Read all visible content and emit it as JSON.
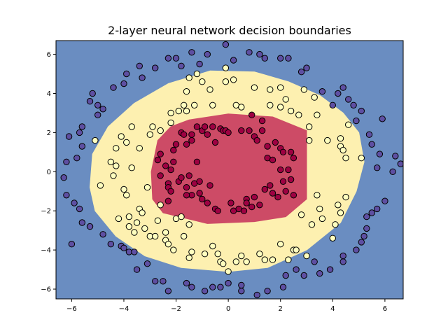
{
  "chart_data": {
    "type": "scatter",
    "title": "2-layer neural network decision boundaries",
    "xlabel": "",
    "ylabel": "",
    "xlim": [
      -6.6,
      6.7
    ],
    "ylim": [
      -6.5,
      6.7
    ],
    "xticks": [
      -6,
      -4,
      -2,
      0,
      2,
      4,
      6
    ],
    "yticks": [
      -6,
      -4,
      -2,
      0,
      2,
      4,
      6
    ],
    "xtick_labels": [
      "−6",
      "−4",
      "−2",
      "0",
      "2",
      "4",
      "6"
    ],
    "ytick_labels": [
      "−6",
      "−4",
      "−2",
      "0",
      "2",
      "4",
      "6"
    ],
    "grid": false,
    "colors": {
      "outer_region": "#6a8dc1",
      "middle_region": "#fdf0b0",
      "inner_region": "#cd4b66",
      "outer_point": "#5e4fa2",
      "middle_point": "#ffffbf",
      "inner_point": "#9e0142",
      "point_edge": "#000000"
    },
    "decision_regions": [
      {
        "class": "outer",
        "color": "#6a8dc1",
        "polygon": [
          [
            -6.6,
            -6.5
          ],
          [
            6.7,
            -6.5
          ],
          [
            6.7,
            6.7
          ],
          [
            -6.6,
            6.7
          ]
        ]
      },
      {
        "class": "middle",
        "color": "#fdf0b0",
        "polygon": [
          [
            -0.7,
            5.15
          ],
          [
            1.0,
            5.1
          ],
          [
            2.3,
            4.6
          ],
          [
            3.5,
            3.9
          ],
          [
            4.4,
            3.0
          ],
          [
            5.0,
            2.0
          ],
          [
            5.2,
            0.5
          ],
          [
            4.9,
            -1.0
          ],
          [
            4.3,
            -2.6
          ],
          [
            3.0,
            -4.0
          ],
          [
            1.5,
            -4.9
          ],
          [
            0.0,
            -5.1
          ],
          [
            -1.8,
            -4.9
          ],
          [
            -3.2,
            -4.3
          ],
          [
            -4.3,
            -3.3
          ],
          [
            -5.1,
            -2.0
          ],
          [
            -5.3,
            -0.8
          ],
          [
            -5.2,
            0.9
          ],
          [
            -4.6,
            2.3
          ],
          [
            -3.6,
            3.5
          ],
          [
            -2.3,
            4.5
          ]
        ]
      },
      {
        "class": "inner",
        "color": "#cd4b66",
        "polygon": [
          [
            -1.5,
            2.65
          ],
          [
            0.0,
            2.95
          ],
          [
            1.7,
            2.8
          ],
          [
            3.0,
            2.1
          ],
          [
            3.0,
            -1.4
          ],
          [
            2.2,
            -2.3
          ],
          [
            1.0,
            -2.55
          ],
          [
            -0.8,
            -2.65
          ],
          [
            -2.5,
            -2.1
          ],
          [
            -2.9,
            -1.4
          ],
          [
            -2.95,
            0.0
          ],
          [
            -2.7,
            1.6
          ],
          [
            -2.2,
            2.3
          ]
        ]
      }
    ],
    "series": [
      {
        "class": "outer",
        "points": [
          [
            -6.0,
            -3.7
          ],
          [
            -6.3,
            -0.3
          ],
          [
            -6.2,
            0.5
          ],
          [
            -6.2,
            -1.2
          ],
          [
            -6.1,
            1.8
          ],
          [
            -5.9,
            -1.6
          ],
          [
            -5.8,
            0.7
          ],
          [
            -5.7,
            -1.9
          ],
          [
            -5.7,
            2.0
          ],
          [
            -5.6,
            1.3
          ],
          [
            -5.6,
            2.3
          ],
          [
            -5.6,
            -2.6
          ],
          [
            -5.3,
            -2.8
          ],
          [
            -5.3,
            3.6
          ],
          [
            -5.2,
            4.0
          ],
          [
            -5.0,
            2.9
          ],
          [
            -5.0,
            3.4
          ],
          [
            -4.8,
            3.2
          ],
          [
            -4.8,
            -3.2
          ],
          [
            -4.5,
            -3.7
          ],
          [
            -4.4,
            4.3
          ],
          [
            -4.1,
            -3.8
          ],
          [
            -4.0,
            4.5
          ],
          [
            -4.0,
            -3.9
          ],
          [
            -3.9,
            5.0
          ],
          [
            -3.8,
            -4.1
          ],
          [
            -3.6,
            -4.1
          ],
          [
            -3.4,
            5.4
          ],
          [
            -3.3,
            4.8
          ],
          [
            -3.1,
            -4.7
          ],
          [
            -2.8,
            5.3
          ],
          [
            -2.8,
            -5.6
          ],
          [
            -2.5,
            -5.6
          ],
          [
            -2.3,
            5.8
          ],
          [
            -2.3,
            -6.1
          ],
          [
            -2.0,
            5.8
          ],
          [
            -1.8,
            5.4
          ],
          [
            -1.6,
            -5.7
          ],
          [
            -1.4,
            6.1
          ],
          [
            -1.4,
            -5.9
          ],
          [
            -1.1,
            5.5
          ],
          [
            -0.9,
            -6.1
          ],
          [
            -0.8,
            6.0
          ],
          [
            -0.6,
            -5.9
          ],
          [
            -0.3,
            -5.9
          ],
          [
            -0.1,
            6.5
          ],
          [
            0.0,
            -5.7
          ],
          [
            0.2,
            5.7
          ],
          [
            0.5,
            -5.8
          ],
          [
            0.5,
            -6.1
          ],
          [
            0.8,
            6.1
          ],
          [
            1.1,
            -6.3
          ],
          [
            1.2,
            6.0
          ],
          [
            1.4,
            5.8
          ],
          [
            1.5,
            -6.1
          ],
          [
            2.0,
            5.8
          ],
          [
            2.1,
            -5.9
          ],
          [
            2.2,
            -5.3
          ],
          [
            2.3,
            5.8
          ],
          [
            2.6,
            -5.0
          ],
          [
            2.8,
            5.1
          ],
          [
            2.9,
            -5.3
          ],
          [
            3.0,
            5.3
          ],
          [
            3.3,
            -4.6
          ],
          [
            3.5,
            -5.2
          ],
          [
            3.6,
            4.1
          ],
          [
            3.9,
            -5.0
          ],
          [
            4.0,
            3.4
          ],
          [
            4.2,
            4.0
          ],
          [
            4.4,
            4.3
          ],
          [
            4.4,
            -4.6
          ],
          [
            4.4,
            -4.3
          ],
          [
            4.6,
            3.7
          ],
          [
            4.8,
            3.4
          ],
          [
            4.9,
            2.6
          ],
          [
            4.9,
            -4.0
          ],
          [
            5.1,
            -3.6
          ],
          [
            5.1,
            3.1
          ],
          [
            5.2,
            -3.3
          ],
          [
            5.3,
            -2.9
          ],
          [
            5.3,
            -2.3
          ],
          [
            5.4,
            1.9
          ],
          [
            5.5,
            1.4
          ],
          [
            5.5,
            -2.1
          ],
          [
            5.7,
            -1.9
          ],
          [
            5.7,
            0.2
          ],
          [
            5.8,
            0.9
          ],
          [
            5.9,
            2.7
          ],
          [
            6.0,
            -1.5
          ],
          [
            6.3,
            0.0
          ],
          [
            6.4,
            0.8
          ],
          [
            6.6,
            0.4
          ],
          [
            -3.5,
            -5.0
          ]
        ]
      },
      {
        "class": "middle",
        "points": [
          [
            -5.1,
            1.6
          ],
          [
            -4.9,
            -0.7
          ],
          [
            -4.5,
            0.5
          ],
          [
            -4.4,
            -0.2
          ],
          [
            -4.3,
            1.2
          ],
          [
            -4.3,
            0.3
          ],
          [
            -4.2,
            -2.4
          ],
          [
            -4.1,
            1.8
          ],
          [
            -4.0,
            -0.9
          ],
          [
            -3.9,
            1.5
          ],
          [
            -3.9,
            -1.2
          ],
          [
            -3.8,
            -2.8
          ],
          [
            -3.8,
            -2.3
          ],
          [
            -3.7,
            0.2
          ],
          [
            -3.7,
            2.3
          ],
          [
            -3.6,
            -3.1
          ],
          [
            -3.5,
            -2.6
          ],
          [
            -3.4,
            -1.9
          ],
          [
            -3.4,
            1.2
          ],
          [
            -3.3,
            -2.1
          ],
          [
            -3.2,
            -2.9
          ],
          [
            -3.1,
            -0.8
          ],
          [
            -3.0,
            1.9
          ],
          [
            -3.0,
            -3.3
          ],
          [
            -2.9,
            2.3
          ],
          [
            -2.8,
            -3.3
          ],
          [
            -2.7,
            -2.5
          ],
          [
            -2.6,
            2.1
          ],
          [
            -2.6,
            -1.7
          ],
          [
            -2.4,
            -3.1
          ],
          [
            -2.4,
            -3.5
          ],
          [
            -2.3,
            -3.7
          ],
          [
            -2.2,
            3.0
          ],
          [
            -2.2,
            2.5
          ],
          [
            -2.1,
            -4.0
          ],
          [
            -2.0,
            -2.4
          ],
          [
            -1.9,
            3.1
          ],
          [
            -1.8,
            -2.3
          ],
          [
            -1.7,
            3.4
          ],
          [
            -1.7,
            -3.3
          ],
          [
            -1.6,
            3.1
          ],
          [
            -1.6,
            4.1
          ],
          [
            -1.5,
            -2.7
          ],
          [
            -1.5,
            -4.4
          ],
          [
            -1.5,
            4.8
          ],
          [
            -1.4,
            -4.1
          ],
          [
            -1.3,
            3.4
          ],
          [
            -1.2,
            5.0
          ],
          [
            -1.0,
            4.6
          ],
          [
            -0.9,
            -4.2
          ],
          [
            -0.7,
            4.2
          ],
          [
            -0.6,
            3.4
          ],
          [
            -0.6,
            -3.8
          ],
          [
            -0.4,
            -4.2
          ],
          [
            -0.3,
            -4.6
          ],
          [
            -0.2,
            -4.7
          ],
          [
            -0.1,
            4.6
          ],
          [
            -0.1,
            5.3
          ],
          [
            0.0,
            -5.1
          ],
          [
            0.2,
            4.7
          ],
          [
            0.3,
            3.4
          ],
          [
            0.3,
            -4.6
          ],
          [
            0.5,
            3.3
          ],
          [
            0.5,
            -4.3
          ],
          [
            0.7,
            -4.6
          ],
          [
            1.0,
            4.3
          ],
          [
            1.2,
            -4.2
          ],
          [
            1.4,
            -4.5
          ],
          [
            1.6,
            4.2
          ],
          [
            1.6,
            3.4
          ],
          [
            1.7,
            -4.5
          ],
          [
            2.0,
            3.3
          ],
          [
            2.0,
            -3.7
          ],
          [
            2.0,
            4.3
          ],
          [
            2.2,
            3.7
          ],
          [
            2.3,
            -4.5
          ],
          [
            2.4,
            3.1
          ],
          [
            2.5,
            -4.0
          ],
          [
            2.6,
            -4.0
          ],
          [
            2.7,
            2.9
          ],
          [
            2.8,
            -2.2
          ],
          [
            2.9,
            4.2
          ],
          [
            3.0,
            -4.3
          ],
          [
            3.1,
            2.3
          ],
          [
            3.1,
            1.6
          ],
          [
            3.2,
            -2.7
          ],
          [
            3.4,
            2.9
          ],
          [
            3.4,
            -1.2
          ],
          [
            3.5,
            -1.9
          ],
          [
            3.6,
            -2.4
          ],
          [
            3.8,
            1.6
          ],
          [
            4.0,
            -3.4
          ],
          [
            4.1,
            -2.7
          ],
          [
            4.2,
            -1.7
          ],
          [
            4.3,
            -2.1
          ],
          [
            4.3,
            1.7
          ],
          [
            4.3,
            1.3
          ],
          [
            4.4,
            1.1
          ],
          [
            4.5,
            0.7
          ],
          [
            4.6,
            2.4
          ],
          [
            5.1,
            0.7
          ],
          [
            4.5,
            -1.3
          ],
          [
            3.3,
            3.8
          ]
        ]
      },
      {
        "class": "inner",
        "points": [
          [
            -2.7,
            0.6
          ],
          [
            -2.6,
            -0.2
          ],
          [
            -2.6,
            0.9
          ],
          [
            -2.4,
            0.3
          ],
          [
            -2.3,
            -0.6
          ],
          [
            -2.3,
            -0.8
          ],
          [
            -2.2,
            0.1
          ],
          [
            -2.2,
            -1.0
          ],
          [
            -2.1,
            1.1
          ],
          [
            -2.1,
            0.5
          ],
          [
            -2.0,
            1.4
          ],
          [
            -1.9,
            -0.5
          ],
          [
            -1.8,
            2.0
          ],
          [
            -1.8,
            -0.3
          ],
          [
            -1.7,
            1.9
          ],
          [
            -1.6,
            1.4
          ],
          [
            -1.6,
            -0.8
          ],
          [
            -1.5,
            -0.2
          ],
          [
            -1.4,
            1.6
          ],
          [
            -1.4,
            1.9
          ],
          [
            -1.4,
            -1.2
          ],
          [
            -1.3,
            -0.6
          ],
          [
            -1.2,
            0.5
          ],
          [
            -1.1,
            -1.1
          ],
          [
            -1.0,
            2.1
          ],
          [
            -1.0,
            -1.4
          ],
          [
            -0.9,
            2.3
          ],
          [
            -0.8,
            -1.6
          ],
          [
            -0.8,
            1.9
          ],
          [
            -0.7,
            -0.7
          ],
          [
            -0.6,
            2.3
          ],
          [
            -0.5,
            -1.9
          ],
          [
            -0.4,
            -2.0
          ],
          [
            -0.3,
            2.2
          ],
          [
            -0.2,
            2.1
          ],
          [
            -0.1,
            2.1
          ],
          [
            0.0,
            2.0
          ],
          [
            0.1,
            -1.6
          ],
          [
            0.2,
            -2.0
          ],
          [
            0.4,
            -1.9
          ],
          [
            0.5,
            2.1
          ],
          [
            0.6,
            -2.0
          ],
          [
            0.7,
            -1.4
          ],
          [
            0.7,
            -1.6
          ],
          [
            0.8,
            2.1
          ],
          [
            0.9,
            -1.8
          ],
          [
            1.0,
            1.8
          ],
          [
            1.0,
            -1.3
          ],
          [
            1.1,
            1.6
          ],
          [
            1.2,
            -1.7
          ],
          [
            1.3,
            2.1
          ],
          [
            1.4,
            -0.9
          ],
          [
            1.5,
            1.3
          ],
          [
            1.5,
            0.7
          ],
          [
            1.6,
            -0.7
          ],
          [
            1.7,
            -1.1
          ],
          [
            1.7,
            0.6
          ],
          [
            1.8,
            1.5
          ],
          [
            1.9,
            -1.3
          ],
          [
            2.0,
            0.1
          ],
          [
            2.0,
            1.2
          ],
          [
            2.1,
            -0.5
          ],
          [
            2.1,
            1.0
          ],
          [
            2.2,
            -1.0
          ],
          [
            2.3,
            0.1
          ],
          [
            2.4,
            -0.4
          ],
          [
            2.4,
            1.0
          ],
          [
            2.5,
            0.7
          ],
          [
            2.5,
            -1.2
          ],
          [
            -2.3,
            -1.5
          ],
          [
            -1.6,
            -1.2
          ],
          [
            -1.1,
            -0.5
          ],
          [
            1.3,
            2.6
          ],
          [
            0.9,
            2.9
          ],
          [
            -1.2,
            2.3
          ],
          [
            -0.5,
            1.5
          ]
        ]
      }
    ]
  }
}
